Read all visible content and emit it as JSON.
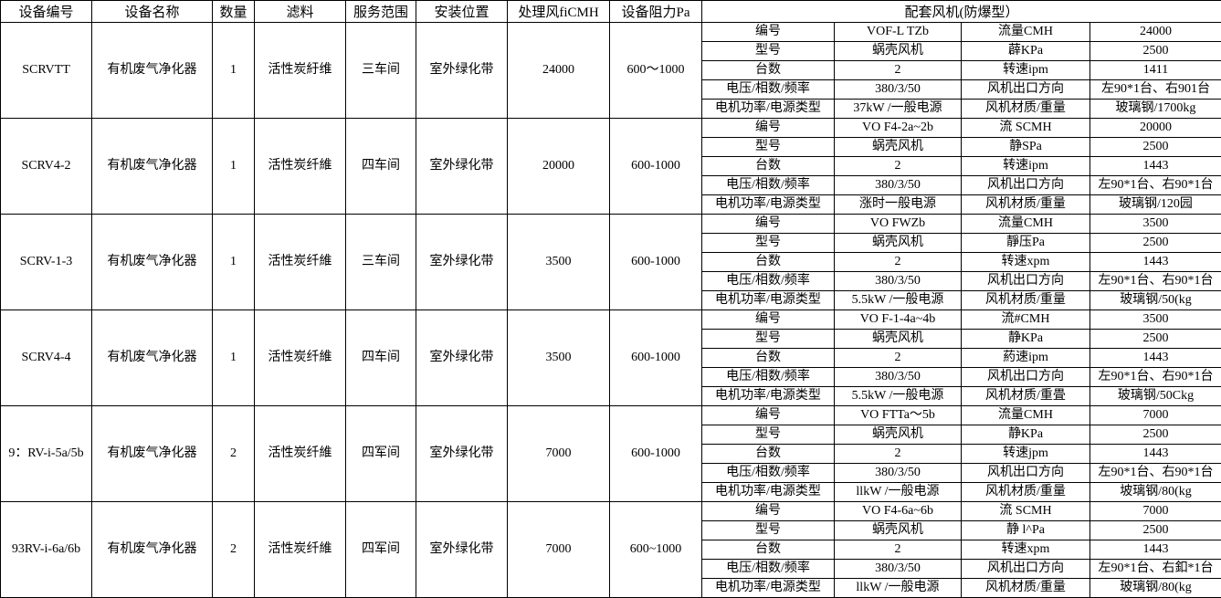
{
  "headers": [
    "设备编号",
    "设备名称",
    "数量",
    "滤料",
    "服务范围",
    "安装位置",
    "处理风fiCMH",
    "设备阻力Pa",
    "配套风机(防爆型）"
  ],
  "rows": [
    {
      "id": "SCRVTT",
      "name": "有机废气净化器",
      "qty": "1",
      "filter": "活性炭紆维",
      "scope": "三车间",
      "location": "室外绿化带",
      "airflow": "24000",
      "resistance": "600～1000",
      "fan": [
        [
          "编号",
          "VOF-L TZb",
          "流量CMH",
          "24000"
        ],
        [
          "型号",
          "蜗壳风机",
          "薜KPa",
          "2500"
        ],
        [
          "台数",
          "2",
          "转速ipm",
          "1411"
        ],
        [
          "电压/相数/频率",
          "380/3/50",
          "风机出口方向",
          "左90*1台、右901台"
        ],
        [
          "电机功率/电源类型",
          "37kW /一般电源",
          "风机材质/重量",
          "玻璃钢/1700kg"
        ]
      ]
    },
    {
      "id": "SCRV4-2",
      "name": "有机废气净化器",
      "qty": "1",
      "filter": "活性炭纤維",
      "scope": "四车间",
      "location": "室外绿化带",
      "airflow": "20000",
      "resistance": "600-1000",
      "fan": [
        [
          "编号",
          "VO F4-2a~2b",
          "流 SCMH",
          "20000"
        ],
        [
          "型号",
          "蜗壳风机",
          "静SPa",
          "2500"
        ],
        [
          "台数",
          "2",
          "转速ipm",
          "1443"
        ],
        [
          "电压/相数/频率",
          "380/3/50",
          "风机出口方向",
          "左90*1台、右90*1台"
        ],
        [
          "电机功率/电源类型",
          "涨时一般电源",
          "风机材质/重量",
          "玻璃钢/120园"
        ]
      ]
    },
    {
      "id": "SCRV-1-3",
      "name": "有机废气净化器",
      "qty": "1",
      "filter": "活性炭纤維",
      "scope": "三车间",
      "location": "室外绿化带",
      "airflow": "3500",
      "resistance": "600-1000",
      "fan": [
        [
          "编号",
          "VO FWZb",
          "流量CMH",
          "3500"
        ],
        [
          "型号",
          "蜗壳风机",
          "靜压Pa",
          "2500"
        ],
        [
          "台数",
          "2",
          "转速xpm",
          "1443"
        ],
        [
          "电压/相数/频率",
          "380/3/50",
          "风机出口方向",
          "左90*1台、右90*1台"
        ],
        [
          "电机功率/电源类型",
          "5.5kW /一般电源",
          "风机材质/重量",
          "玻璃钢/50(kg"
        ]
      ]
    },
    {
      "id": "SCRV4-4",
      "name": "有机废气净化器",
      "qty": "1",
      "filter": "活性炭纤維",
      "scope": "四车间",
      "location": "室外绿化带",
      "airflow": "3500",
      "resistance": "600-1000",
      "fan": [
        [
          "编号",
          "VO F-1-4a~4b",
          "流#CMH",
          "3500"
        ],
        [
          "型号",
          "蜗壳风机",
          "静KPa",
          "2500"
        ],
        [
          "台数",
          "2",
          "葯速ipm",
          "1443"
        ],
        [
          "电压/相数/频率",
          "380/3/50",
          "风机出口方向",
          "左90*1台、右90*1台"
        ],
        [
          "电机功率/电源类型",
          "5.5kW /一般电源",
          "风机材质/重畳",
          "玻璃钢/50Ckg"
        ]
      ]
    },
    {
      "id": "9：RV-i-5a/5b",
      "name": "有机废气净化器",
      "qty": "2",
      "filter": "活性炭纤維",
      "scope": "四军间",
      "location": "室外绿化带",
      "airflow": "7000",
      "resistance": "600-1000",
      "fan": [
        [
          "编号",
          "VO FTTa～5b",
          "流量CMH",
          "7000"
        ],
        [
          "型号",
          "蜗壳风机",
          "静KPa",
          "2500"
        ],
        [
          "台数",
          "2",
          "转速jpm",
          "1443"
        ],
        [
          "电压/相数/频率",
          "380/3/50",
          "风机出口方向",
          "左90*1台、右90*1台"
        ],
        [
          "电机功率/电源类型",
          "llkW /一般电源",
          "风机材质/重量",
          "坡璃钢/80(kg"
        ]
      ]
    },
    {
      "id": "93RV-i-6a/6b",
      "name": "有机废气净化器",
      "qty": "2",
      "filter": "活性炭纤維",
      "scope": "四军间",
      "location": "室外绿化带",
      "airflow": "7000",
      "resistance": "600~1000",
      "fan": [
        [
          "编号",
          "VO F4-6a~6b",
          "流 SCMH",
          "7000"
        ],
        [
          "型号",
          "蜗壳风机",
          "静 l^Pa",
          "2500"
        ],
        [
          "台数",
          "2",
          "转速xpm",
          "1443"
        ],
        [
          "电压/相数/频率",
          "380/3/50",
          "风机出口方向",
          "左90*1台、右釦*1台"
        ],
        [
          "电机功率/电源类型",
          "llkW /一般电源",
          "风机材质/重量",
          "玻璃钢/80(kg"
        ]
      ]
    }
  ]
}
